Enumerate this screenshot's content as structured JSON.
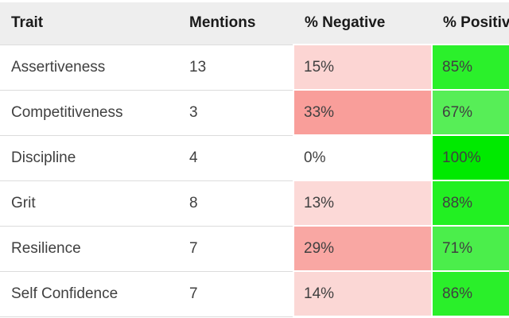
{
  "chart_data": {
    "type": "table",
    "columns": [
      "Trait",
      "Mentions",
      "% Negative",
      "% Positive"
    ],
    "rows": [
      {
        "trait": "Assertiveness",
        "mentions": 13,
        "pct_negative": 15,
        "pct_positive": 85
      },
      {
        "trait": "Competitiveness",
        "mentions": 3,
        "pct_negative": 33,
        "pct_positive": 67
      },
      {
        "trait": "Discipline",
        "mentions": 4,
        "pct_negative": 0,
        "pct_positive": 100
      },
      {
        "trait": "Grit",
        "mentions": 8,
        "pct_negative": 13,
        "pct_positive": 88
      },
      {
        "trait": "Resilience",
        "mentions": 7,
        "pct_negative": 29,
        "pct_positive": 71
      },
      {
        "trait": "Self Confidence",
        "mentions": 7,
        "pct_negative": 14,
        "pct_positive": 86
      }
    ],
    "title": "",
    "legend": "none",
    "notes": "percent cells shaded red (negative) and green (positive) proportional to value"
  },
  "style": {
    "header_bg": "#eeeeee",
    "header_text": "#1a1a1a",
    "body_text": "#404040",
    "row_border": "#dcdcdc",
    "negative_cell_colors": [
      "#fcd5d3",
      "#f99e9a",
      "#ffffff",
      "#fcd9d7",
      "#f9a7a3",
      "#fbd7d5"
    ],
    "positive_cell_colors": [
      "#2bf02b",
      "#57ee57",
      "#00ea00",
      "#22f022",
      "#4bee4b",
      "#2aef2a"
    ]
  }
}
